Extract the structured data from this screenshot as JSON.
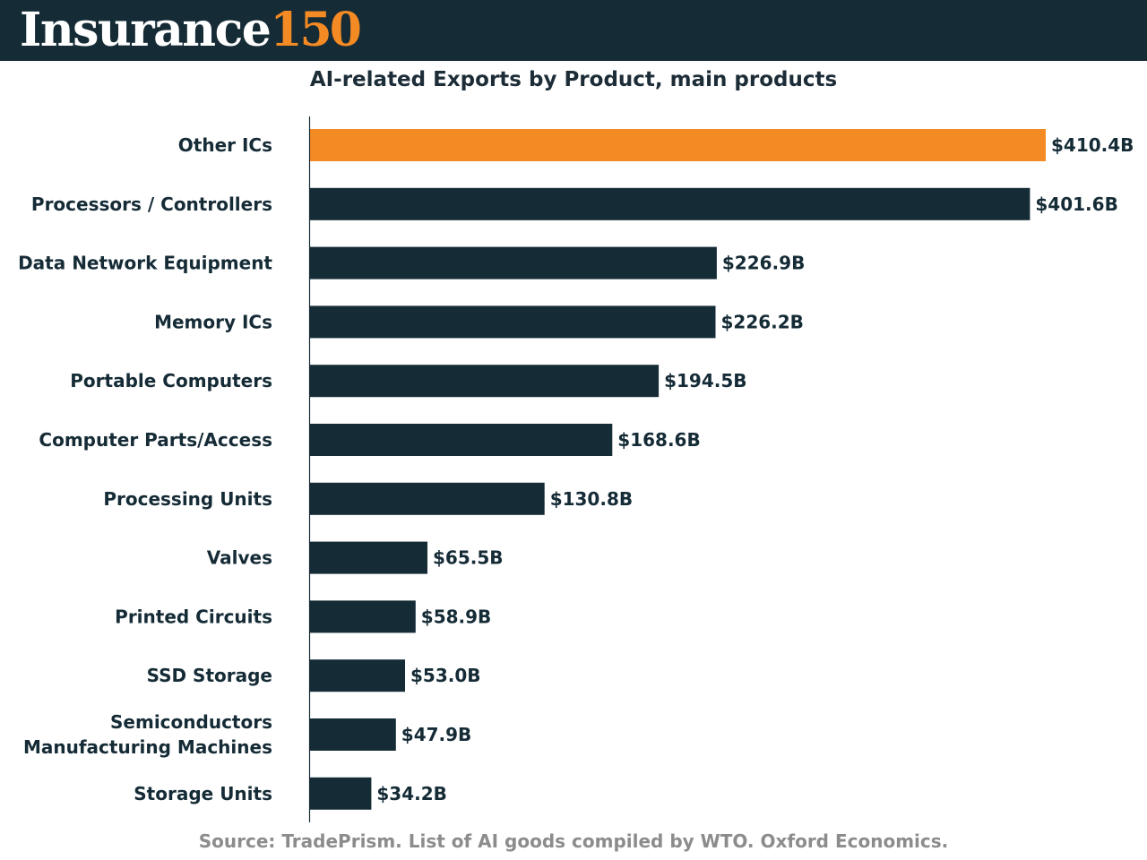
{
  "brand": {
    "word": "Insurance",
    "number": "150"
  },
  "colors": {
    "header_bg": "#152b36",
    "bar_default": "#152b36",
    "bar_highlight": "#f48a24",
    "source_text": "#8c8c8c"
  },
  "source": "Source: TradePrism. List of AI goods compiled by WTO. Oxford Economics.",
  "chart_data": {
    "type": "bar",
    "orientation": "horizontal",
    "title": "AI-related Exports by Product, main products",
    "xlabel": "",
    "ylabel": "",
    "unit": "USD billions",
    "xlim": [
      0,
      410.4
    ],
    "grid": false,
    "legend": false,
    "categories": [
      [
        "Other ICs"
      ],
      [
        "Processors / Controllers"
      ],
      [
        "Data Network Equipment"
      ],
      [
        "Memory ICs"
      ],
      [
        "Portable Computers"
      ],
      [
        "Computer Parts/Access"
      ],
      [
        "Processing Units"
      ],
      [
        "Valves"
      ],
      [
        "Printed Circuits"
      ],
      [
        "SSD Storage"
      ],
      [
        "Semiconductors",
        "Manufacturing Machines"
      ],
      [
        "Storage Units"
      ]
    ],
    "values": [
      410.4,
      401.6,
      226.9,
      226.2,
      194.5,
      168.6,
      130.8,
      65.5,
      58.9,
      53.0,
      47.9,
      34.2
    ],
    "value_labels": [
      "$410.4B",
      "$401.6B",
      "$226.9B",
      "$226.2B",
      "$194.5B",
      "$168.6B",
      "$130.8B",
      "$65.5B",
      "$58.9B",
      "$53.0B",
      "$47.9B",
      "$34.2B"
    ],
    "highlight_index": 0
  }
}
